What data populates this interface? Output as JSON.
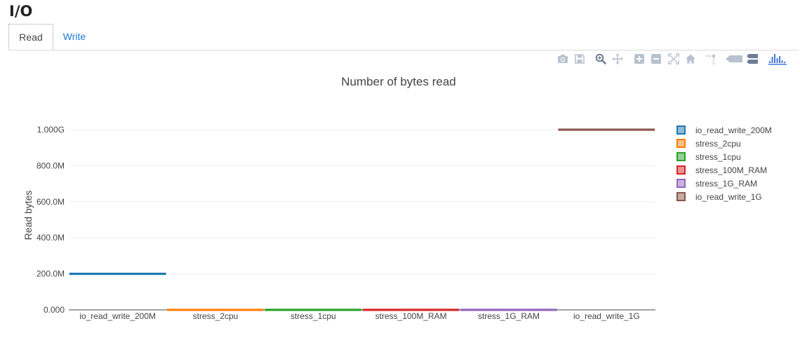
{
  "page": {
    "title": "I/O"
  },
  "tabs": [
    {
      "label": "Read",
      "active": true
    },
    {
      "label": "Write",
      "active": false
    }
  ],
  "modebar": [
    {
      "icon": "camera-icon",
      "name": "download-png-button"
    },
    {
      "icon": "save-icon",
      "name": "save-button"
    },
    {
      "icon": "zoom-icon",
      "name": "zoom-button"
    },
    {
      "icon": "pan-icon",
      "name": "pan-button"
    },
    {
      "icon": "zoom-in-icon",
      "name": "zoom-in-button"
    },
    {
      "icon": "zoom-out-icon",
      "name": "zoom-out-button"
    },
    {
      "icon": "autoscale-icon",
      "name": "autoscale-button"
    },
    {
      "icon": "home-icon",
      "name": "reset-axes-button"
    },
    {
      "icon": "spikelines-icon",
      "name": "spikelines-button"
    },
    {
      "icon": "hover-closest-icon",
      "name": "hover-closest-button"
    },
    {
      "icon": "hover-compare-icon",
      "name": "hover-compare-button"
    },
    {
      "icon": "plotly-logo-icon",
      "name": "plotly-logo-link"
    }
  ],
  "colors": {
    "icon_inactive": "#b7c1cf",
    "icon_active": "#6f7e96",
    "brand": "#3f4f75",
    "plotly_logo": "#447adb"
  },
  "chart_data": {
    "type": "box",
    "title": "Number of bytes read",
    "xlabel": "",
    "ylabel": "Read bytes",
    "ylim": [
      0,
      1000000000
    ],
    "yticks": [
      {
        "value": 0,
        "label": "0.000"
      },
      {
        "value": 200000000,
        "label": "200.0M"
      },
      {
        "value": 400000000,
        "label": "400.0M"
      },
      {
        "value": 600000000,
        "label": "600.0M"
      },
      {
        "value": 800000000,
        "label": "800.0M"
      },
      {
        "value": 1000000000,
        "label": "1.000G"
      }
    ],
    "grid": true,
    "legend_position": "right",
    "categories": [
      "io_read_write_200M",
      "stress_2cpu",
      "stress_1cpu",
      "stress_100M_RAM",
      "stress_1G_RAM",
      "io_read_write_1G"
    ],
    "series": [
      {
        "name": "io_read_write_200M",
        "category": "io_read_write_200M",
        "value": 200000000,
        "color": "#1f77b4"
      },
      {
        "name": "stress_2cpu",
        "category": "stress_2cpu",
        "value": 0,
        "color": "#ff7f0e"
      },
      {
        "name": "stress_1cpu",
        "category": "stress_1cpu",
        "value": 0,
        "color": "#2ca02c"
      },
      {
        "name": "stress_100M_RAM",
        "category": "stress_100M_RAM",
        "value": 0,
        "color": "#d62728"
      },
      {
        "name": "stress_1G_RAM",
        "category": "stress_1G_RAM",
        "value": 0,
        "color": "#9467bd"
      },
      {
        "name": "io_read_write_1G",
        "category": "io_read_write_1G",
        "value": 1000000000,
        "color": "#8c564b"
      }
    ]
  }
}
